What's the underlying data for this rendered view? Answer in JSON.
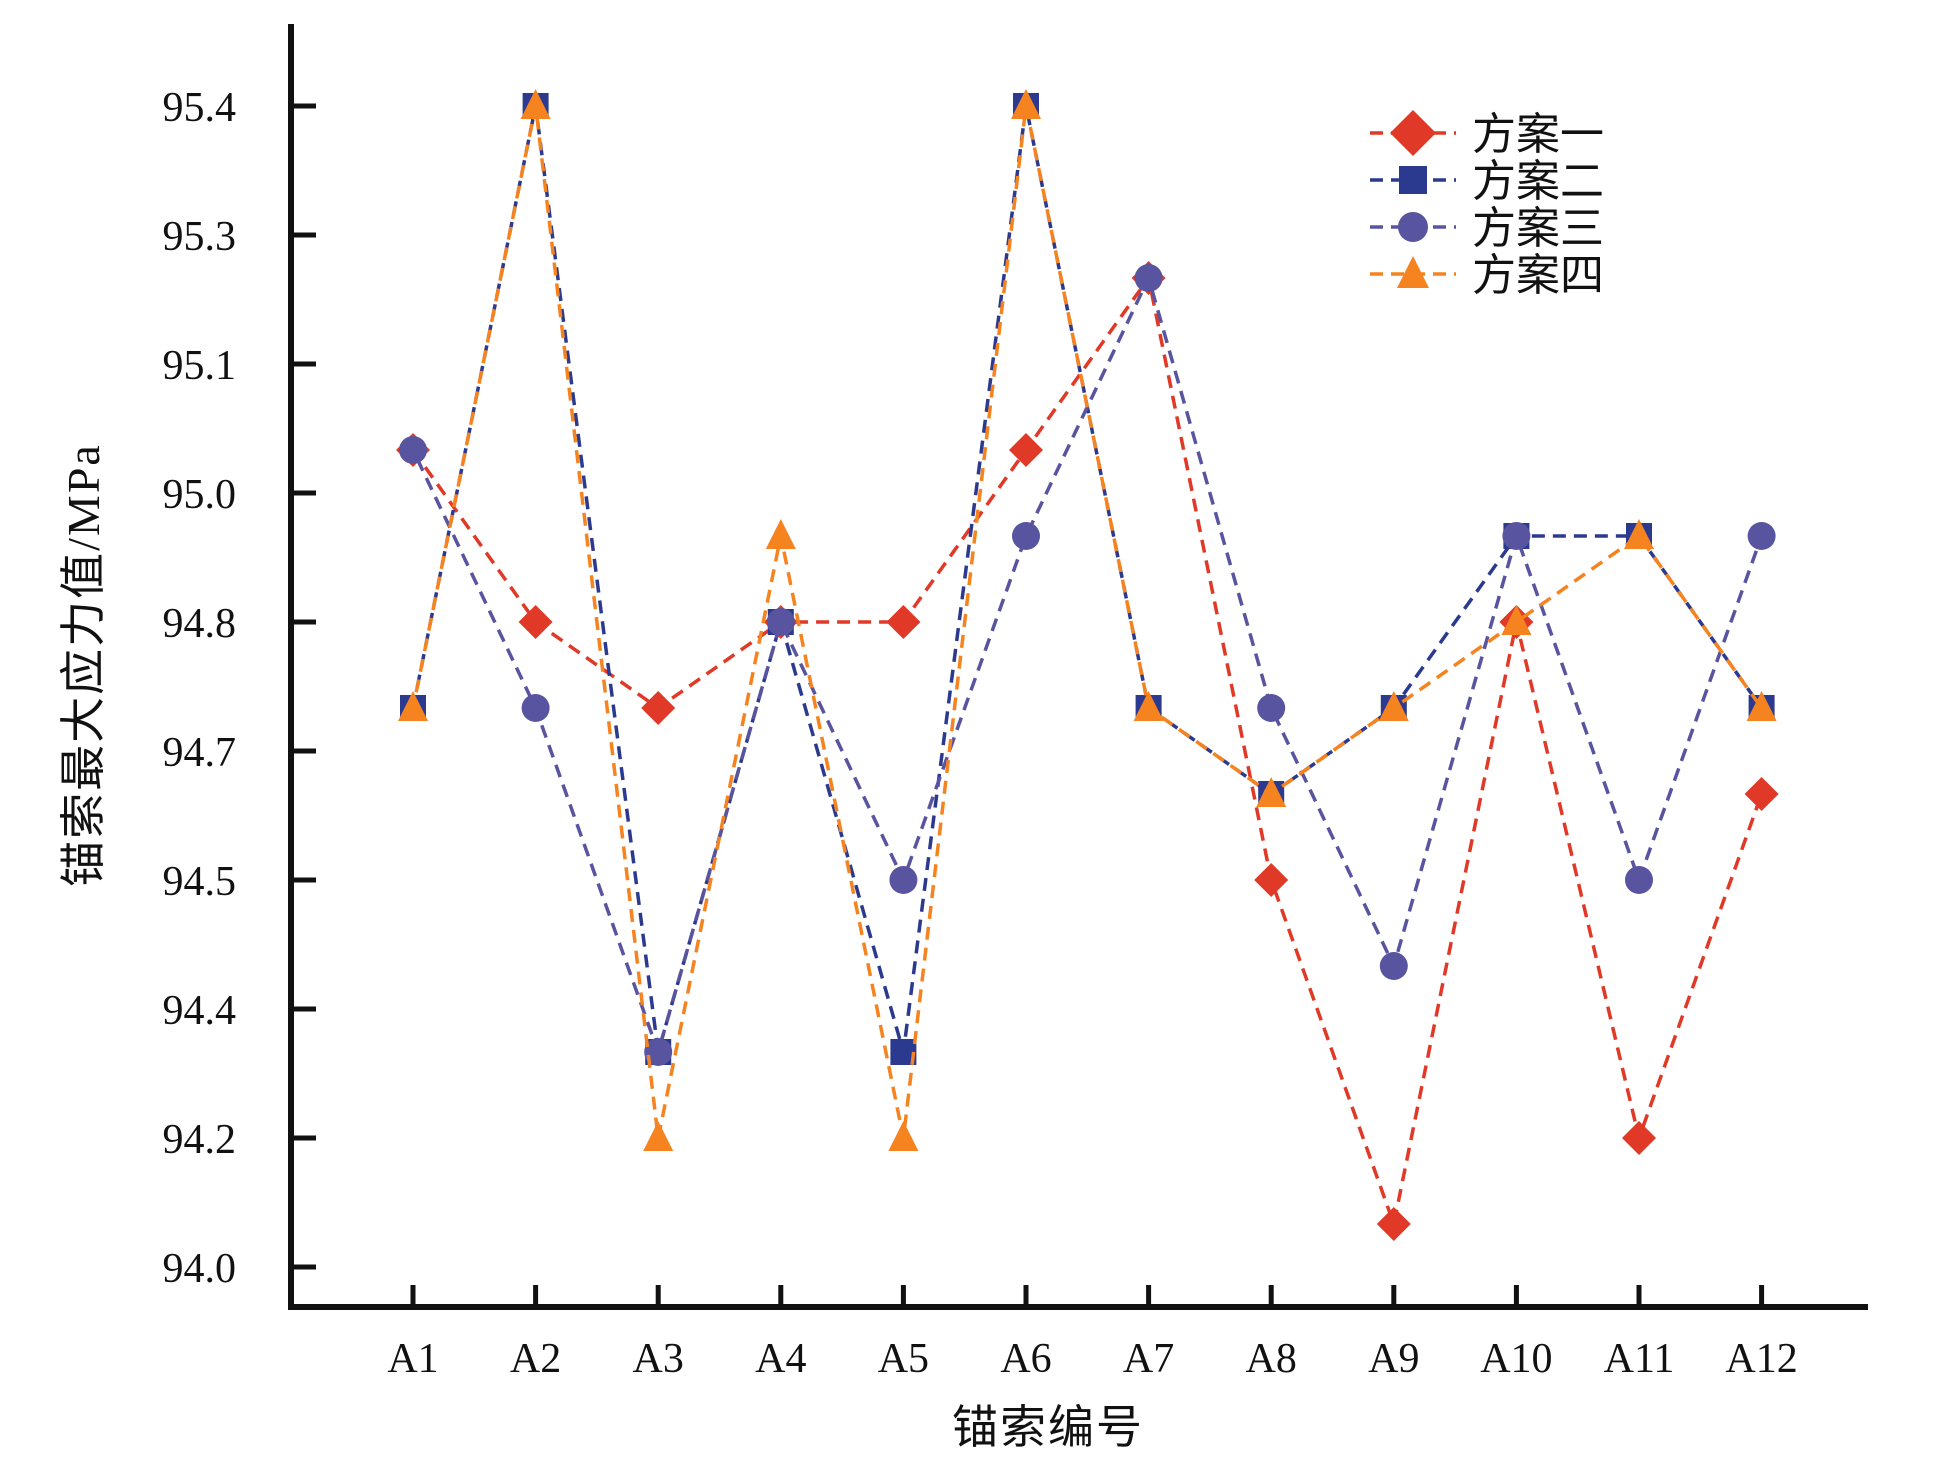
{
  "figure": {
    "background_color": "#ffffff",
    "text_color": "#111111"
  },
  "chart_data": {
    "type": "line",
    "title": "",
    "xlabel": "锚索编号",
    "ylabel": "锚索最大应力值/MPa",
    "categories": [
      "A1",
      "A2",
      "A3",
      "A4",
      "A5",
      "A6",
      "A7",
      "A8",
      "A9",
      "A10",
      "A11",
      "A12"
    ],
    "series": [
      {
        "name": "方案一",
        "marker": "diamond",
        "color": "#E03927",
        "values": [
          95.0,
          94.8,
          94.7,
          94.8,
          94.8,
          95.0,
          95.2,
          94.5,
          94.1,
          94.8,
          94.2,
          94.6
        ]
      },
      {
        "name": "方案二",
        "marker": "square",
        "color": "#2B3A8F",
        "values": [
          94.7,
          95.4,
          94.3,
          94.8,
          94.3,
          95.4,
          94.7,
          94.6,
          94.7,
          94.9,
          94.9,
          94.7
        ]
      },
      {
        "name": "方案三",
        "marker": "circle",
        "color": "#59549F",
        "values": [
          95.0,
          94.7,
          94.3,
          94.8,
          94.5,
          94.9,
          95.2,
          94.7,
          94.4,
          94.9,
          94.5,
          94.9
        ]
      },
      {
        "name": "方案四",
        "marker": "triangle",
        "color": "#F5831F",
        "values": [
          94.7,
          95.4,
          94.2,
          94.9,
          94.2,
          95.4,
          94.7,
          94.6,
          94.7,
          94.8,
          94.9,
          94.7
        ]
      }
    ],
    "y_tick_labels": [
      "95.4",
      "95.3",
      "95.1",
      "95.0",
      "94.8",
      "94.7",
      "94.5",
      "94.4",
      "94.2",
      "94.0"
    ],
    "y_axis_model": {
      "top_tick_value": 95.4,
      "tick_step": 0.15,
      "num_ticks": 10,
      "ylim": [
        94.05,
        95.4
      ]
    },
    "line_style": "dashed",
    "grid": false,
    "legend": {
      "position": "top-right",
      "entries": [
        "方案一",
        "方案二",
        "方案三",
        "方案四"
      ]
    }
  }
}
